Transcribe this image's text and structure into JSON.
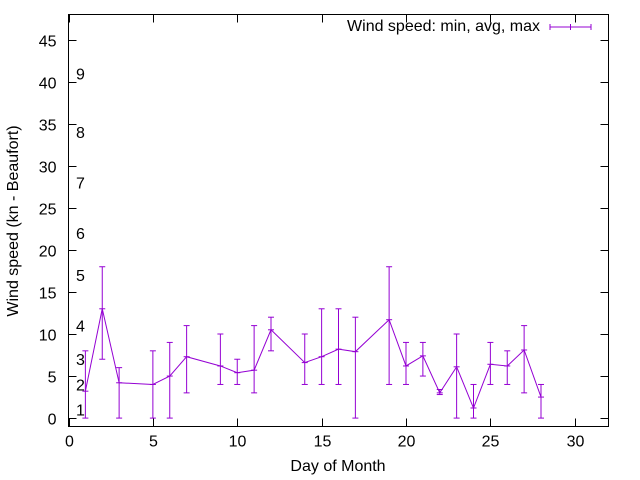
{
  "chart_data": {
    "type": "line",
    "title": "",
    "xlabel": "Day of Month",
    "ylabel": "Wind speed (kn - Beaufort)",
    "xlim": [
      0,
      32
    ],
    "ylim": [
      -1,
      48
    ],
    "xticks": [
      0,
      5,
      10,
      15,
      20,
      25,
      30
    ],
    "yticks": [
      0,
      5,
      10,
      15,
      20,
      25,
      30,
      35,
      40,
      45
    ],
    "grid": false,
    "legend_position": "top-right",
    "series": [
      {
        "name": "Wind speed: min, avg, max",
        "color": "#9400d3",
        "error_bars": true,
        "points": [
          {
            "x": 1,
            "min": 0,
            "avg": 3.2,
            "max": 8
          },
          {
            "x": 2,
            "min": 7,
            "avg": 13,
            "max": 18
          },
          {
            "x": 3,
            "min": 0,
            "avg": 4.2,
            "max": 6
          },
          {
            "x": 5,
            "min": 0,
            "avg": 4.0,
            "max": 8
          },
          {
            "x": 6,
            "min": 0,
            "avg": 5.0,
            "max": 9
          },
          {
            "x": 7,
            "min": 3,
            "avg": 7.3,
            "max": 11
          },
          {
            "x": 9,
            "min": 4,
            "avg": 6.2,
            "max": 10
          },
          {
            "x": 10,
            "min": 4,
            "avg": 5.4,
            "max": 7
          },
          {
            "x": 11,
            "min": 3,
            "avg": 5.7,
            "max": 11
          },
          {
            "x": 12,
            "min": 8,
            "avg": 10.5,
            "max": 12
          },
          {
            "x": 14,
            "min": 4,
            "avg": 6.6,
            "max": 10
          },
          {
            "x": 15,
            "min": 4,
            "avg": 7.3,
            "max": 13
          },
          {
            "x": 16,
            "min": 4,
            "avg": 8.2,
            "max": 13
          },
          {
            "x": 17,
            "min": 0,
            "avg": 7.9,
            "max": 12
          },
          {
            "x": 19,
            "min": 4,
            "avg": 11.7,
            "max": 18
          },
          {
            "x": 20,
            "min": 4,
            "avg": 6.2,
            "max": 9
          },
          {
            "x": 21,
            "min": 5,
            "avg": 7.4,
            "max": 9
          },
          {
            "x": 22,
            "min": 2.8,
            "avg": 3.0,
            "max": 3.4
          },
          {
            "x": 23,
            "min": 0,
            "avg": 6.1,
            "max": 10
          },
          {
            "x": 24,
            "min": 0,
            "avg": 1.2,
            "max": 4
          },
          {
            "x": 25,
            "min": 4,
            "avg": 6.4,
            "max": 9
          },
          {
            "x": 26,
            "min": 4,
            "avg": 6.2,
            "max": 8
          },
          {
            "x": 27,
            "min": 3,
            "avg": 8.1,
            "max": 11
          },
          {
            "x": 28,
            "min": 0,
            "avg": 2.5,
            "max": 4
          }
        ]
      }
    ],
    "annotations": [
      {
        "text": "1",
        "y": 1
      },
      {
        "text": "2",
        "y": 4
      },
      {
        "text": "3",
        "y": 7
      },
      {
        "text": "4",
        "y": 11
      },
      {
        "text": "5",
        "y": 17
      },
      {
        "text": "6",
        "y": 22
      },
      {
        "text": "7",
        "y": 28
      },
      {
        "text": "8",
        "y": 34
      },
      {
        "text": "9",
        "y": 41
      }
    ]
  }
}
